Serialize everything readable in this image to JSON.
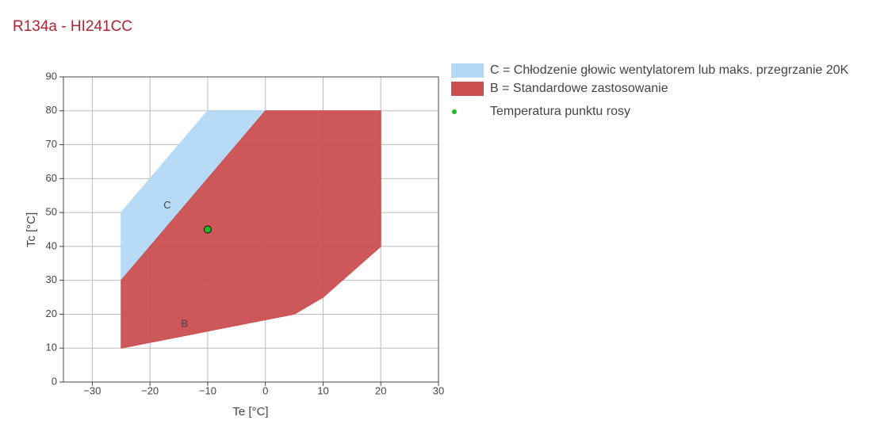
{
  "chart_data": {
    "type": "polygon",
    "title": "R134a - HI241CC",
    "x_label": "Te [°C]",
    "y_label": "Tc [°C]",
    "xlim": [
      -35,
      30
    ],
    "ylim": [
      0,
      90
    ],
    "xticks": [
      {
        "value": -30,
        "label": "−30"
      },
      {
        "value": -20,
        "label": "−20"
      },
      {
        "value": -10,
        "label": "−10"
      },
      0,
      10,
      20,
      30
    ],
    "yticks": [
      0,
      10,
      20,
      30,
      40,
      50,
      60,
      70,
      80,
      90
    ],
    "grid": true,
    "legend": "right",
    "series": [
      {
        "name": "C = Chłodzenie głowic wentylatorem lub maks. przegrzanie 20K",
        "color": "#b3d9f5",
        "mode": "polygon",
        "x": [
          -25,
          -25,
          -10,
          0
        ],
        "y": [
          30,
          50,
          80,
          80
        ]
      },
      {
        "name": "B = Standardowe zastosowanie",
        "color": "#cb4f50",
        "mode": "polygon",
        "x": [
          -25,
          -25,
          0,
          20,
          20,
          10,
          5
        ],
        "y": [
          10,
          30,
          80,
          80,
          40,
          25,
          20
        ]
      },
      {
        "name": "Temperatura punktu rosy",
        "color": "#22bb22",
        "mode": "marker",
        "x": [
          -10
        ],
        "y": [
          45
        ]
      }
    ],
    "annotations": [
      {
        "text": "C",
        "x": -17,
        "y": 52
      },
      {
        "text": "B",
        "x": -14,
        "y": 17
      }
    ]
  }
}
